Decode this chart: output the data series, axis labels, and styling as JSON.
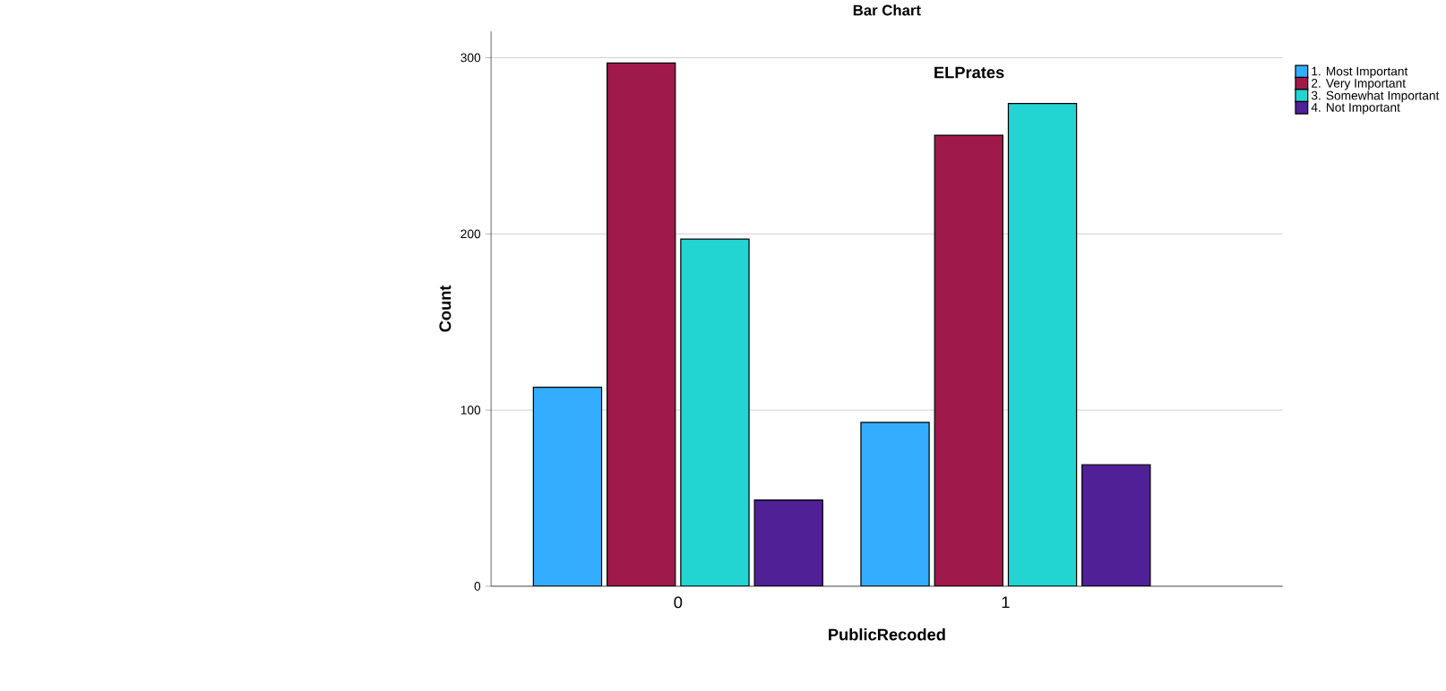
{
  "chart_data": {
    "type": "bar",
    "title": "Bar Chart",
    "xlabel": "PublicRecoded",
    "ylabel": "Count",
    "legend_title": "ELPrates",
    "categories": [
      "0",
      "1"
    ],
    "series": [
      {
        "name": "1. Most Important",
        "color": "#33adff",
        "values": [
          113,
          93
        ]
      },
      {
        "name": "2. Very Important",
        "color": "#a0194b",
        "values": [
          297,
          256
        ]
      },
      {
        "name": "3. Somewhat Important",
        "color": "#22d5d2",
        "values": [
          197,
          274
        ]
      },
      {
        "name": "4. Not Important",
        "color": "#4f2096",
        "values": [
          49,
          69
        ]
      }
    ],
    "ylim": [
      0,
      315
    ],
    "yticks": [
      0,
      100,
      200,
      300
    ],
    "grid": "y",
    "legend": "top right"
  }
}
